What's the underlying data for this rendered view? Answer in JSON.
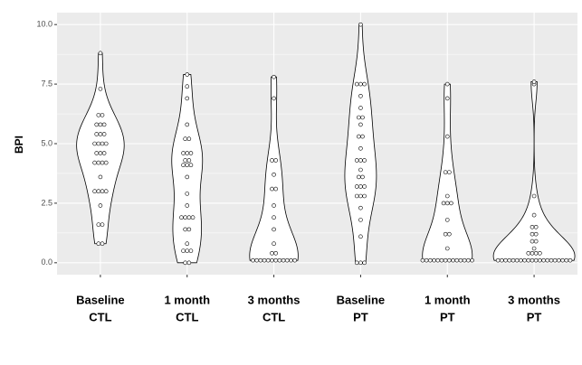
{
  "chart_data": {
    "type": "violin",
    "y_label": "BPI",
    "categories": [
      [
        "Baseline",
        "CTL"
      ],
      [
        "1 month",
        "CTL"
      ],
      [
        "3 months",
        "CTL"
      ],
      [
        "Baseline",
        "PT"
      ],
      [
        "1 month",
        "PT"
      ],
      [
        "3 months",
        "PT"
      ]
    ],
    "values": [
      [
        0.8,
        0.8,
        1.6,
        1.6,
        2.4,
        3.0,
        3.0,
        3.0,
        3.0,
        3.6,
        4.2,
        4.2,
        4.2,
        4.2,
        4.6,
        4.6,
        4.6,
        5.0,
        5.0,
        5.0,
        5.0,
        5.4,
        5.4,
        5.4,
        5.8,
        5.8,
        5.8,
        6.2,
        6.2,
        7.3,
        8.8
      ],
      [
        0,
        0,
        0.5,
        0.5,
        0.5,
        0.8,
        1.4,
        1.4,
        1.9,
        1.9,
        1.9,
        1.9,
        2.4,
        2.9,
        3.6,
        4.1,
        4.1,
        4.1,
        4.3,
        4.3,
        4.6,
        4.6,
        4.6,
        5.2,
        5.2,
        5.8,
        6.9,
        7.4,
        7.9
      ],
      [
        0.1,
        0.1,
        0.1,
        0.1,
        0.1,
        0.1,
        0.1,
        0.1,
        0.1,
        0.1,
        0.1,
        0.1,
        0.4,
        0.4,
        0.8,
        1.4,
        1.9,
        2.4,
        3.1,
        3.1,
        3.7,
        4.3,
        4.3,
        6.9,
        7.8
      ],
      [
        0,
        0,
        0,
        1.1,
        1.8,
        2.3,
        2.8,
        2.8,
        2.8,
        3.2,
        3.2,
        3.2,
        3.6,
        3.6,
        3.9,
        4.3,
        4.3,
        4.3,
        4.8,
        5.3,
        5.3,
        5.8,
        6.1,
        6.1,
        6.5,
        7.0,
        7.5,
        7.5,
        7.5,
        10.0
      ],
      [
        0.1,
        0.1,
        0.1,
        0.1,
        0.1,
        0.1,
        0.1,
        0.1,
        0.1,
        0.1,
        0.1,
        0.1,
        0.1,
        0.1,
        0.6,
        1.2,
        1.2,
        1.8,
        2.5,
        2.5,
        2.5,
        2.8,
        3.8,
        3.8,
        5.3,
        6.9,
        7.5
      ],
      [
        0.1,
        0.1,
        0.1,
        0.1,
        0.1,
        0.1,
        0.1,
        0.1,
        0.1,
        0.1,
        0.1,
        0.1,
        0.1,
        0.1,
        0.1,
        0.1,
        0.1,
        0.1,
        0.1,
        0.1,
        0.4,
        0.4,
        0.4,
        0.4,
        0.6,
        0.9,
        0.9,
        1.2,
        1.2,
        1.5,
        1.5,
        2.0,
        2.8,
        7.5,
        7.6
      ]
    ],
    "ylim": [
      -0.5,
      10.5
    ],
    "yticks": [
      {
        "value": 0,
        "label": "0.0"
      },
      {
        "value": 2.5,
        "label": "2.5"
      },
      {
        "value": 5,
        "label": "5.0"
      },
      {
        "value": 7.5,
        "label": "7.5"
      },
      {
        "value": 10,
        "label": "10.0"
      }
    ],
    "grid": true,
    "panel_color": "#ebebeb",
    "violin_fill": "#ffffff",
    "point_fill": "#ffffff",
    "outline_color": "#000000"
  }
}
